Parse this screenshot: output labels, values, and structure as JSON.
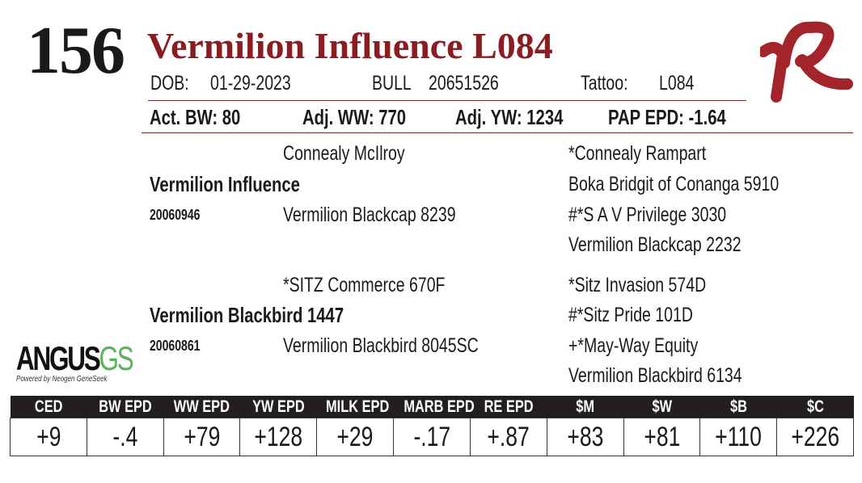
{
  "lot_number": "156",
  "name": "Vermilion Influence L084",
  "dob_label": "DOB:",
  "dob": "01-29-2023",
  "sex": "BULL",
  "registration": "20651526",
  "tattoo_label": "Tattoo:",
  "tattoo": "L084",
  "act_bw": "Act. BW: 80",
  "adj_ww": "Adj. WW: 770",
  "adj_yw": "Adj. YW: 1234",
  "pap_epd": "PAP EPD: -1.64",
  "logo_text": "VR",
  "pedigree": {
    "sire": {
      "name": "Vermilion Influence",
      "reg": "20060946",
      "sire": "Connealy McIlroy",
      "dam": "Vermilion Blackcap 8239",
      "ss": "*Connealy Rampart",
      "sd": "Boka Bridgit of Conanga 5910",
      "ds": "#*S A V Privilege 3030",
      "dd": "Vermilion Blackcap 2232"
    },
    "dam": {
      "name": "Vermilion Blackbird 1447",
      "reg": "20060861",
      "sire": "*SITZ Commerce 670F",
      "dam": "Vermilion Blackbird 8045SC",
      "ss": "*Sitz Invasion 574D",
      "sd": "#*Sitz Pride 101D",
      "ds": "+*May-Way Equity",
      "dd": "Vermilion Blackbird 6134"
    }
  },
  "angus_logo": {
    "main": "ANGUS",
    "gs": "GS",
    "tagline": "Powered by Neogen GeneSeek"
  },
  "epd_headers": [
    "CED",
    "BW EPD",
    "WW EPD",
    "YW EPD",
    "MILK EPD",
    "MARB EPD",
    "RE EPD",
    "$M",
    "$W",
    "$B",
    "$C"
  ],
  "epd_values": [
    "+9",
    "-.4",
    "+79",
    "+128",
    "+29",
    "-.17",
    "+.87",
    "+83",
    "+81",
    "+110",
    "+226"
  ]
}
